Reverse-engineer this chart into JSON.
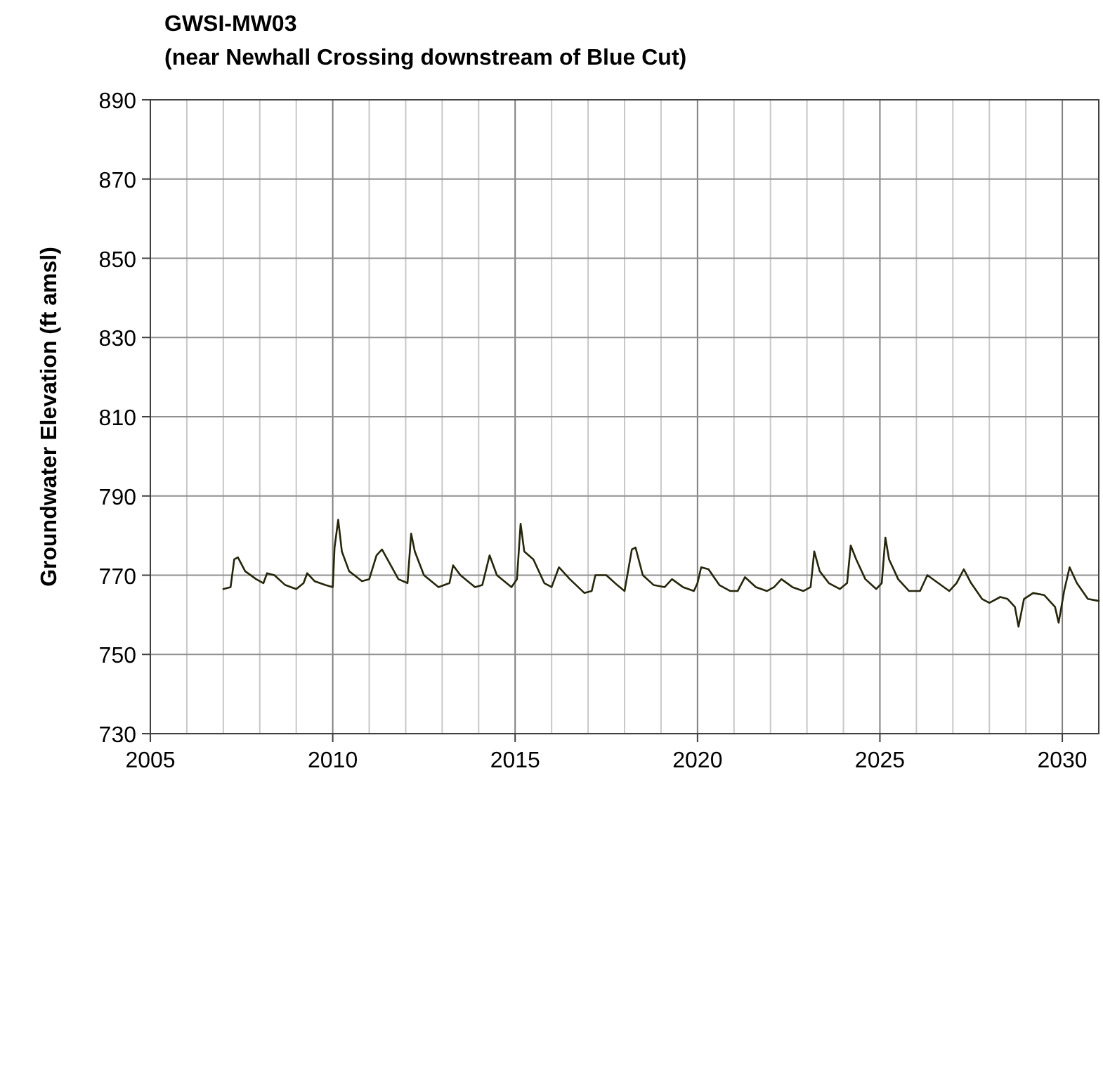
{
  "chart_data": {
    "type": "line",
    "title": "GWSI-MW03",
    "subtitle": "(near Newhall Crossing downstream of Blue Cut)",
    "ylabel": "Groundwater Elevation (ft amsl)",
    "xlim": [
      2005,
      2031
    ],
    "ylim": [
      730,
      890
    ],
    "xticks": [
      2005,
      {
        "value": 2006,
        "label": null
      },
      {
        "value": 2007,
        "label": null
      },
      {
        "value": 2008,
        "label": null
      },
      {
        "value": 2009,
        "label": null
      },
      2010,
      {
        "value": 2011,
        "label": null
      },
      {
        "value": 2012,
        "label": null
      },
      {
        "value": 2013,
        "label": null
      },
      {
        "value": 2014,
        "label": null
      },
      2015,
      {
        "value": 2016,
        "label": null
      },
      {
        "value": 2017,
        "label": null
      },
      {
        "value": 2018,
        "label": null
      },
      {
        "value": 2019,
        "label": null
      },
      2020,
      {
        "value": 2021,
        "label": null
      },
      {
        "value": 2022,
        "label": null
      },
      {
        "value": 2023,
        "label": null
      },
      {
        "value": 2024,
        "label": null
      },
      2025,
      {
        "value": 2026,
        "label": null
      },
      {
        "value": 2027,
        "label": null
      },
      {
        "value": 2028,
        "label": null
      },
      {
        "value": 2029,
        "label": null
      },
      2030
    ],
    "yticks": [
      730,
      750,
      770,
      790,
      810,
      830,
      850,
      870,
      890
    ],
    "grid": true,
    "marker": "none",
    "line_style": "solid",
    "series": [
      {
        "color": "#26260c",
        "x": [
          2007.0,
          2007.2,
          2007.3,
          2007.4,
          2007.6,
          2007.9,
          2008.1,
          2008.2,
          2008.4,
          2008.7,
          2009.0,
          2009.2,
          2009.3,
          2009.5,
          2009.8,
          2010.0,
          2010.05,
          2010.15,
          2010.25,
          2010.45,
          2010.8,
          2011.0,
          2011.2,
          2011.35,
          2011.5,
          2011.8,
          2012.05,
          2012.15,
          2012.25,
          2012.5,
          2012.9,
          2013.2,
          2013.3,
          2013.5,
          2013.9,
          2014.1,
          2014.3,
          2014.5,
          2014.9,
          2015.05,
          2015.15,
          2015.25,
          2015.5,
          2015.8,
          2016.0,
          2016.2,
          2016.5,
          2016.9,
          2017.1,
          2017.2,
          2017.5,
          2017.8,
          2018.0,
          2018.2,
          2018.3,
          2018.5,
          2018.8,
          2019.1,
          2019.3,
          2019.6,
          2019.9,
          2020.0,
          2020.1,
          2020.3,
          2020.6,
          2020.9,
          2021.1,
          2021.3,
          2021.6,
          2021.9,
          2022.1,
          2022.3,
          2022.6,
          2022.9,
          2023.1,
          2023.2,
          2023.35,
          2023.6,
          2023.9,
          2024.1,
          2024.2,
          2024.35,
          2024.6,
          2024.9,
          2025.05,
          2025.15,
          2025.25,
          2025.5,
          2025.8,
          2026.1,
          2026.3,
          2026.6,
          2026.9,
          2027.1,
          2027.3,
          2027.5,
          2027.8,
          2028.0,
          2028.3,
          2028.5,
          2028.7,
          2028.8,
          2028.95,
          2029.2,
          2029.5,
          2029.8,
          2029.9,
          2030.05,
          2030.2,
          2030.4,
          2030.7,
          2031.0
        ],
        "values": [
          766.5,
          767,
          774,
          774.5,
          771,
          769,
          768,
          770.5,
          770,
          767.5,
          766.5,
          768,
          770.5,
          768.5,
          767.5,
          767,
          777,
          784,
          776,
          771,
          768.5,
          769,
          775,
          776.5,
          774,
          769,
          768,
          780.5,
          776,
          770,
          767,
          768,
          772.5,
          770,
          767,
          767.5,
          775,
          770,
          767,
          769,
          783,
          776,
          774,
          768,
          767,
          772,
          769,
          765.5,
          766,
          770,
          770,
          767.5,
          766,
          776.5,
          777,
          770,
          767.5,
          767,
          769,
          767,
          766,
          768,
          772,
          771.5,
          767.5,
          766,
          766,
          769.5,
          767,
          766,
          767,
          769,
          767,
          766,
          767,
          776,
          771,
          768,
          766.5,
          768,
          777.5,
          774,
          769,
          766.5,
          768,
          779.5,
          774,
          769,
          766,
          766,
          770,
          768,
          766,
          768,
          771.5,
          768,
          764,
          763,
          764.5,
          764,
          762,
          757,
          764,
          765.5,
          765,
          762,
          758,
          766,
          772,
          768,
          764,
          763.5
        ]
      }
    ]
  }
}
